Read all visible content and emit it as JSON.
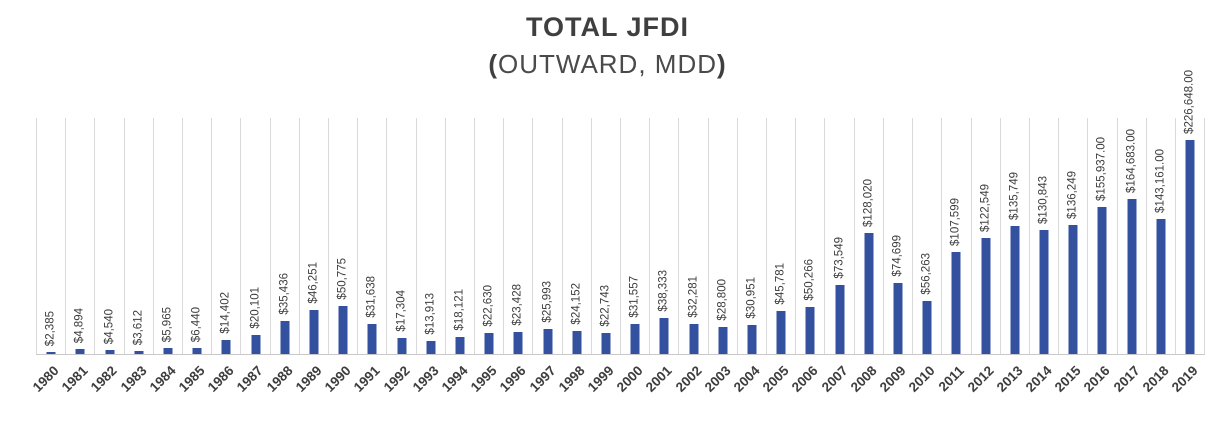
{
  "chart_data": {
    "type": "bar",
    "title": "TOTAL JFDI",
    "subtitle": {
      "open": "(",
      "text": "OUTWARD, MDD",
      "close": ")"
    },
    "categories": [
      "1980",
      "1981",
      "1982",
      "1983",
      "1984",
      "1985",
      "1986",
      "1987",
      "1988",
      "1989",
      "1990",
      "1991",
      "1992",
      "1993",
      "1994",
      "1995",
      "1996",
      "1997",
      "1998",
      "1999",
      "2000",
      "2001",
      "2002",
      "2003",
      "2004",
      "2005",
      "2006",
      "2007",
      "2008",
      "2009",
      "2010",
      "2011",
      "2012",
      "2013",
      "2014",
      "2015",
      "2016",
      "2017",
      "2018",
      "2019"
    ],
    "values": [
      2385,
      4894,
      4540,
      3612,
      5965,
      6440,
      14402,
      20101,
      35436,
      46251,
      50775,
      31638,
      17304,
      13913,
      18121,
      22630,
      23428,
      25993,
      24152,
      22743,
      31557,
      38333,
      32281,
      28800,
      30951,
      45781,
      50266,
      73549,
      128020,
      74699,
      56263,
      107599,
      122549,
      135749,
      130843,
      136249,
      155937,
      164683,
      143161,
      226648
    ],
    "labels": [
      "$2,385",
      "$4,894",
      "$4,540",
      "$3,612",
      "$5,965",
      "$6,440",
      "$14,402",
      "$20,101",
      "$35,436",
      "$46,251",
      "$50,775",
      "$31,638",
      "$17,304",
      "$13,913",
      "$18,121",
      "$22,630",
      "$23,428",
      "$25,993",
      "$24,152",
      "$22,743",
      "$31,557",
      "$38,333",
      "$32,281",
      "$28,800",
      "$30,951",
      "$45,781",
      "$50,266",
      "$73,549",
      "$128,020",
      "$74,699",
      "$56,263",
      "$107,599",
      "$122,549",
      "$135,749",
      "$130,843",
      "$136,249",
      "$155,937.00",
      "$164,683.00",
      "$143,161.00",
      "$226,648.00"
    ],
    "xlabel": "",
    "ylabel": "",
    "ylim": [
      0,
      250000
    ],
    "grid": "vertical-gridlines-on",
    "legend": "none",
    "bar_color": "#33519f",
    "gridline_color": "#d9d9d9",
    "label_color": "#3d3d3d"
  }
}
